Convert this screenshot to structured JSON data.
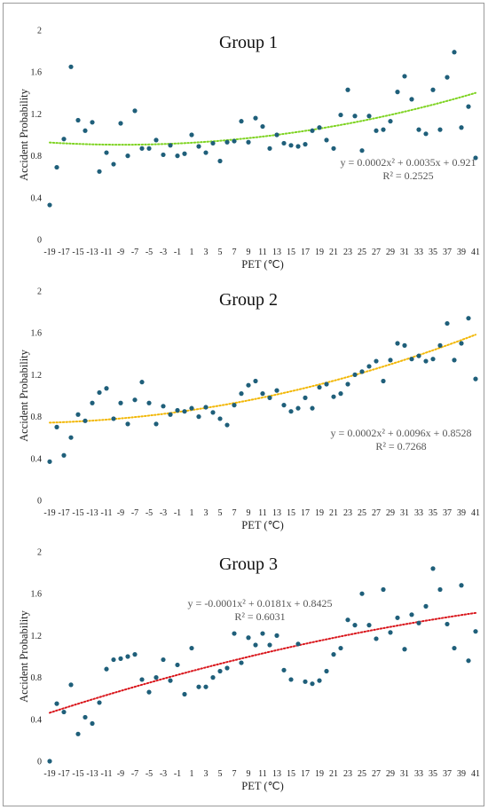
{
  "chart_data": [
    {
      "type": "scatter",
      "title": "Group 1",
      "xlabel": "PET (℃)",
      "ylabel": "Accident Probability",
      "ylim": [
        0,
        2
      ],
      "yticks": [
        "0",
        "0.4",
        "0.8",
        "1.2",
        "1.6",
        "2"
      ],
      "xlim": [
        -19,
        41
      ],
      "xticks": [
        "-19",
        "-17",
        "-15",
        "-13",
        "-11",
        "-9",
        "-7",
        "-5",
        "-3",
        "-1",
        "1",
        "3",
        "5",
        "7",
        "9",
        "11",
        "13",
        "15",
        "17",
        "19",
        "21",
        "23",
        "25",
        "27",
        "29",
        "31",
        "33",
        "35",
        "37",
        "39",
        "41"
      ],
      "trendline": {
        "type": "polynomial",
        "order": 2,
        "coefficients": [
          0.0002,
          0.0035,
          0.921
        ],
        "color": "#7ed321",
        "style": "dotted"
      },
      "equation": "y = 0.0002x² + 0.0035x + 0.921",
      "r2": "R² = 0.2525",
      "marker_color": "#1f5f7a",
      "points": {
        "x": [
          -19,
          -18,
          -17,
          -16,
          -15,
          -14,
          -13,
          -12,
          -11,
          -10,
          -9,
          -8,
          -7,
          -6,
          -5,
          -4,
          -3,
          -2,
          -1,
          0,
          1,
          2,
          3,
          4,
          5,
          6,
          7,
          8,
          9,
          10,
          11,
          12,
          13,
          14,
          15,
          16,
          17,
          18,
          19,
          20,
          21,
          22,
          23,
          24,
          25,
          26,
          27,
          28,
          29,
          30,
          31,
          32,
          33,
          34,
          35,
          36,
          37,
          38,
          39,
          40,
          41
        ],
        "y": [
          0.33,
          0.69,
          0.96,
          1.65,
          1.14,
          1.04,
          1.12,
          0.65,
          0.83,
          0.72,
          1.11,
          0.8,
          1.23,
          0.87,
          0.87,
          0.95,
          0.81,
          0.9,
          0.8,
          0.82,
          1.0,
          0.89,
          0.83,
          0.92,
          0.75,
          0.93,
          0.94,
          1.13,
          0.93,
          1.16,
          1.08,
          0.87,
          1.0,
          0.92,
          0.9,
          0.89,
          0.91,
          1.04,
          1.07,
          0.95,
          0.87,
          1.19,
          1.43,
          1.18,
          0.85,
          1.18,
          1.04,
          1.05,
          1.13,
          1.41,
          1.56,
          1.34,
          1.05,
          1.01,
          1.43,
          1.05,
          1.55,
          1.79,
          1.07,
          1.27,
          0.78
        ]
      },
      "annotations": []
    },
    {
      "type": "scatter",
      "title": "Group 2",
      "xlabel": "PET (℃)",
      "ylabel": "Accident Probability",
      "ylim": [
        0,
        2
      ],
      "yticks": [
        "0",
        "0.4",
        "0.8",
        "1.2",
        "1.6",
        "2"
      ],
      "xlim": [
        -19,
        41
      ],
      "xticks": [
        "-19",
        "-17",
        "-15",
        "-13",
        "-11",
        "-9",
        "-7",
        "-5",
        "-3",
        "-1",
        "1",
        "3",
        "5",
        "7",
        "9",
        "11",
        "13",
        "15",
        "17",
        "19",
        "21",
        "23",
        "25",
        "27",
        "29",
        "31",
        "33",
        "35",
        "37",
        "39",
        "41"
      ],
      "trendline": {
        "type": "polynomial",
        "order": 2,
        "coefficients": [
          0.0002,
          0.0096,
          0.8528
        ],
        "color": "#f2b705",
        "style": "dotted"
      },
      "equation": "y = 0.0002x² + 0.0096x + 0.8528",
      "r2": "R² = 0.7268",
      "marker_color": "#1f5f7a",
      "points": {
        "x": [
          -19,
          -18,
          -17,
          -16,
          -15,
          -14,
          -13,
          -12,
          -11,
          -10,
          -9,
          -8,
          -7,
          -6,
          -5,
          -4,
          -3,
          -2,
          -1,
          0,
          1,
          2,
          3,
          4,
          5,
          6,
          7,
          8,
          9,
          10,
          11,
          12,
          13,
          14,
          15,
          16,
          17,
          18,
          19,
          20,
          21,
          22,
          23,
          24,
          25,
          26,
          27,
          28,
          29,
          30,
          31,
          32,
          33,
          34,
          35,
          36,
          37,
          38,
          39,
          40,
          41
        ],
        "y": [
          0.37,
          0.7,
          0.43,
          0.6,
          0.82,
          0.76,
          0.93,
          1.03,
          1.07,
          0.78,
          0.93,
          0.73,
          0.96,
          1.13,
          0.93,
          0.73,
          0.9,
          0.82,
          0.86,
          0.85,
          0.88,
          0.8,
          0.89,
          0.84,
          0.78,
          0.72,
          0.91,
          1.02,
          1.1,
          1.14,
          1.02,
          0.98,
          1.05,
          0.91,
          0.85,
          0.88,
          0.98,
          0.88,
          1.08,
          1.11,
          0.99,
          1.02,
          1.11,
          1.2,
          1.23,
          1.28,
          1.33,
          1.14,
          1.34,
          1.5,
          1.48,
          1.35,
          1.38,
          1.33,
          1.35,
          1.48,
          1.69,
          1.34,
          1.5,
          1.74,
          1.16
        ]
      },
      "annotations": []
    },
    {
      "type": "scatter",
      "title": "Group 3",
      "xlabel": "PET (℃)",
      "ylabel": "Accident Probability",
      "ylim": [
        0,
        2
      ],
      "yticks": [
        "0",
        "0.4",
        "0.8",
        "1.2",
        "1.6",
        "2"
      ],
      "xlim": [
        -19,
        41
      ],
      "xticks": [
        "-19",
        "-17",
        "-15",
        "-13",
        "-11",
        "-9",
        "-7",
        "-5",
        "-3",
        "-1",
        "1",
        "3",
        "5",
        "7",
        "9",
        "11",
        "13",
        "15",
        "17",
        "19",
        "21",
        "23",
        "25",
        "27",
        "29",
        "31",
        "33",
        "35",
        "37",
        "39",
        "41"
      ],
      "trendline": {
        "type": "polynomial",
        "order": 2,
        "coefficients": [
          -0.0001,
          0.0181,
          0.8425
        ],
        "color": "#d9161c",
        "style": "dotted"
      },
      "equation": "y = -0.0001x² + 0.0181x + 0.8425",
      "r2": "R² = 0.6031",
      "marker_color": "#1f5f7a",
      "points": {
        "x": [
          -19,
          -18,
          -17,
          -16,
          -15,
          -14,
          -13,
          -12,
          -11,
          -10,
          -9,
          -8,
          -7,
          -6,
          -5,
          -4,
          -3,
          -2,
          -1,
          0,
          1,
          2,
          3,
          4,
          5,
          6,
          7,
          8,
          9,
          10,
          11,
          12,
          13,
          14,
          15,
          16,
          17,
          18,
          19,
          20,
          21,
          22,
          23,
          24,
          25,
          26,
          27,
          28,
          29,
          30,
          31,
          32,
          33,
          34,
          35,
          36,
          37,
          38,
          39,
          40,
          41
        ],
        "y": [
          0.0,
          0.55,
          0.47,
          0.73,
          0.26,
          0.42,
          0.36,
          0.56,
          0.88,
          0.97,
          0.98,
          1.0,
          1.02,
          0.78,
          0.66,
          0.8,
          0.97,
          0.77,
          0.92,
          0.64,
          1.08,
          0.71,
          0.71,
          0.8,
          0.86,
          0.89,
          1.22,
          0.94,
          1.18,
          1.11,
          1.22,
          1.11,
          1.2,
          0.87,
          0.78,
          1.12,
          0.76,
          0.74,
          0.77,
          0.86,
          1.02,
          1.08,
          1.35,
          1.3,
          1.6,
          1.3,
          1.17,
          1.64,
          1.23,
          1.37,
          1.07,
          1.4,
          1.32,
          1.48,
          1.84,
          1.64,
          1.31,
          1.08,
          1.68,
          0.96,
          1.24
        ]
      },
      "annotations": []
    }
  ]
}
